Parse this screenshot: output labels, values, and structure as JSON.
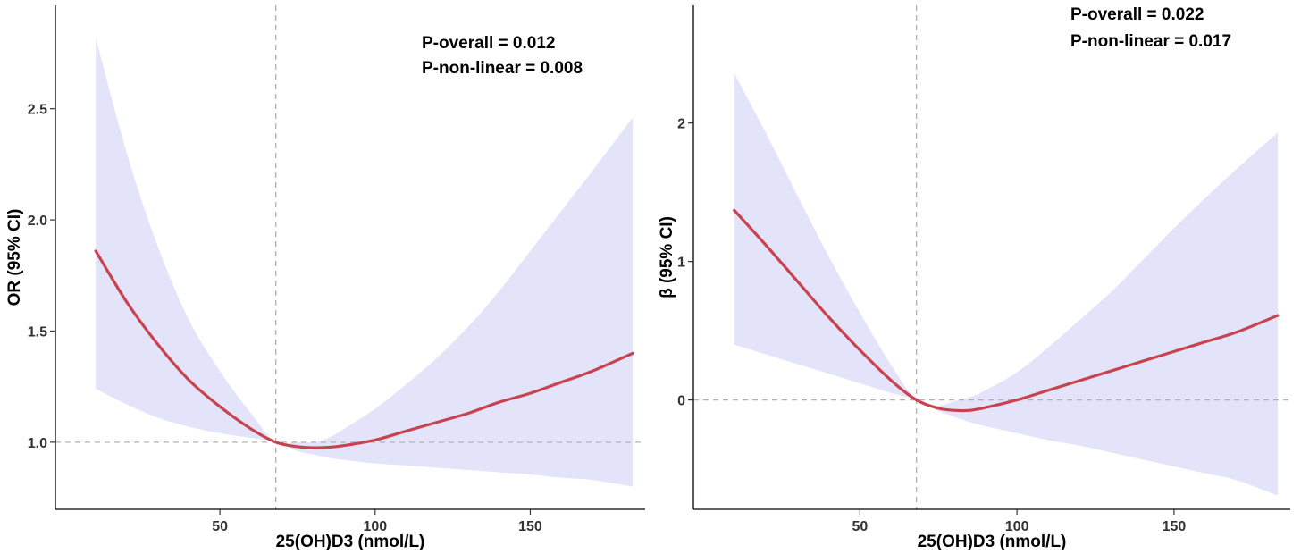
{
  "chart_data": [
    {
      "type": "line",
      "xlabel": "25(OH)D3 (nmol/L)",
      "ylabel": "OR (95% CI)",
      "xlim": [
        -3,
        187
      ],
      "ylim": [
        0.698,
        2.965
      ],
      "x_ticks": [
        50,
        100,
        150
      ],
      "y_ticks": [
        1.0,
        1.5,
        2.0,
        2.5
      ],
      "y_tick_labels": [
        "1.0",
        "1.5",
        "2.0",
        "2.5"
      ],
      "reference_x": 68,
      "reference_y": 1.0,
      "annotations": [
        "P-overall = 0.012",
        "P-non-linear = 0.008"
      ],
      "grid": false,
      "colors": {
        "line": "#c8424f",
        "band": "#e3e3f9",
        "reference": "#b0b0b0"
      },
      "series": [
        {
          "x": [
            10,
            20,
            30,
            40,
            50,
            60,
            68,
            75,
            80,
            85,
            90,
            100,
            110,
            120,
            130,
            140,
            150,
            160,
            170,
            183
          ],
          "y": [
            1.86,
            1.63,
            1.44,
            1.28,
            1.16,
            1.06,
            1.0,
            0.98,
            0.975,
            0.977,
            0.985,
            1.01,
            1.05,
            1.09,
            1.13,
            1.18,
            1.22,
            1.27,
            1.32,
            1.4
          ],
          "lower": [
            1.24,
            1.17,
            1.11,
            1.07,
            1.04,
            1.02,
            1.0,
            0.96,
            0.945,
            0.93,
            0.92,
            0.905,
            0.895,
            0.885,
            0.875,
            0.865,
            0.855,
            0.84,
            0.83,
            0.8
          ],
          "upper": [
            2.82,
            2.3,
            1.88,
            1.55,
            1.32,
            1.13,
            1.0,
            1.0,
            1.0,
            1.02,
            1.06,
            1.15,
            1.26,
            1.38,
            1.52,
            1.68,
            1.86,
            2.04,
            2.22,
            2.46
          ]
        }
      ]
    },
    {
      "type": "line",
      "xlabel": "25(OH)D3 (nmol/L)",
      "ylabel": "β (95% CI)",
      "xlim": [
        -3,
        187
      ],
      "ylim": [
        -0.79,
        2.85
      ],
      "x_ticks": [
        50,
        100,
        150
      ],
      "y_ticks": [
        0,
        1,
        2
      ],
      "y_tick_labels": [
        "0",
        "1",
        "2"
      ],
      "reference_x": 68,
      "reference_y": 0,
      "annotations": [
        "P-overall = 0.022",
        "P-non-linear = 0.017"
      ],
      "grid": false,
      "colors": {
        "line": "#c8424f",
        "band": "#e3e3f9",
        "reference": "#b0b0b0"
      },
      "series": [
        {
          "x": [
            10,
            20,
            30,
            40,
            50,
            60,
            68,
            75,
            80,
            85,
            90,
            100,
            110,
            120,
            130,
            140,
            150,
            160,
            170,
            183
          ],
          "y": [
            1.37,
            1.12,
            0.86,
            0.6,
            0.36,
            0.14,
            0.0,
            -0.06,
            -0.075,
            -0.075,
            -0.055,
            0.0,
            0.07,
            0.14,
            0.21,
            0.28,
            0.35,
            0.42,
            0.49,
            0.61
          ],
          "lower": [
            0.4,
            0.33,
            0.26,
            0.19,
            0.12,
            0.05,
            0.0,
            -0.08,
            -0.12,
            -0.16,
            -0.19,
            -0.24,
            -0.29,
            -0.33,
            -0.38,
            -0.43,
            -0.48,
            -0.53,
            -0.58,
            -0.69
          ],
          "upper": [
            2.36,
            1.93,
            1.48,
            1.04,
            0.63,
            0.25,
            0.0,
            -0.04,
            -0.01,
            0.02,
            0.07,
            0.2,
            0.38,
            0.58,
            0.78,
            1.01,
            1.24,
            1.46,
            1.67,
            1.93
          ]
        }
      ]
    }
  ]
}
